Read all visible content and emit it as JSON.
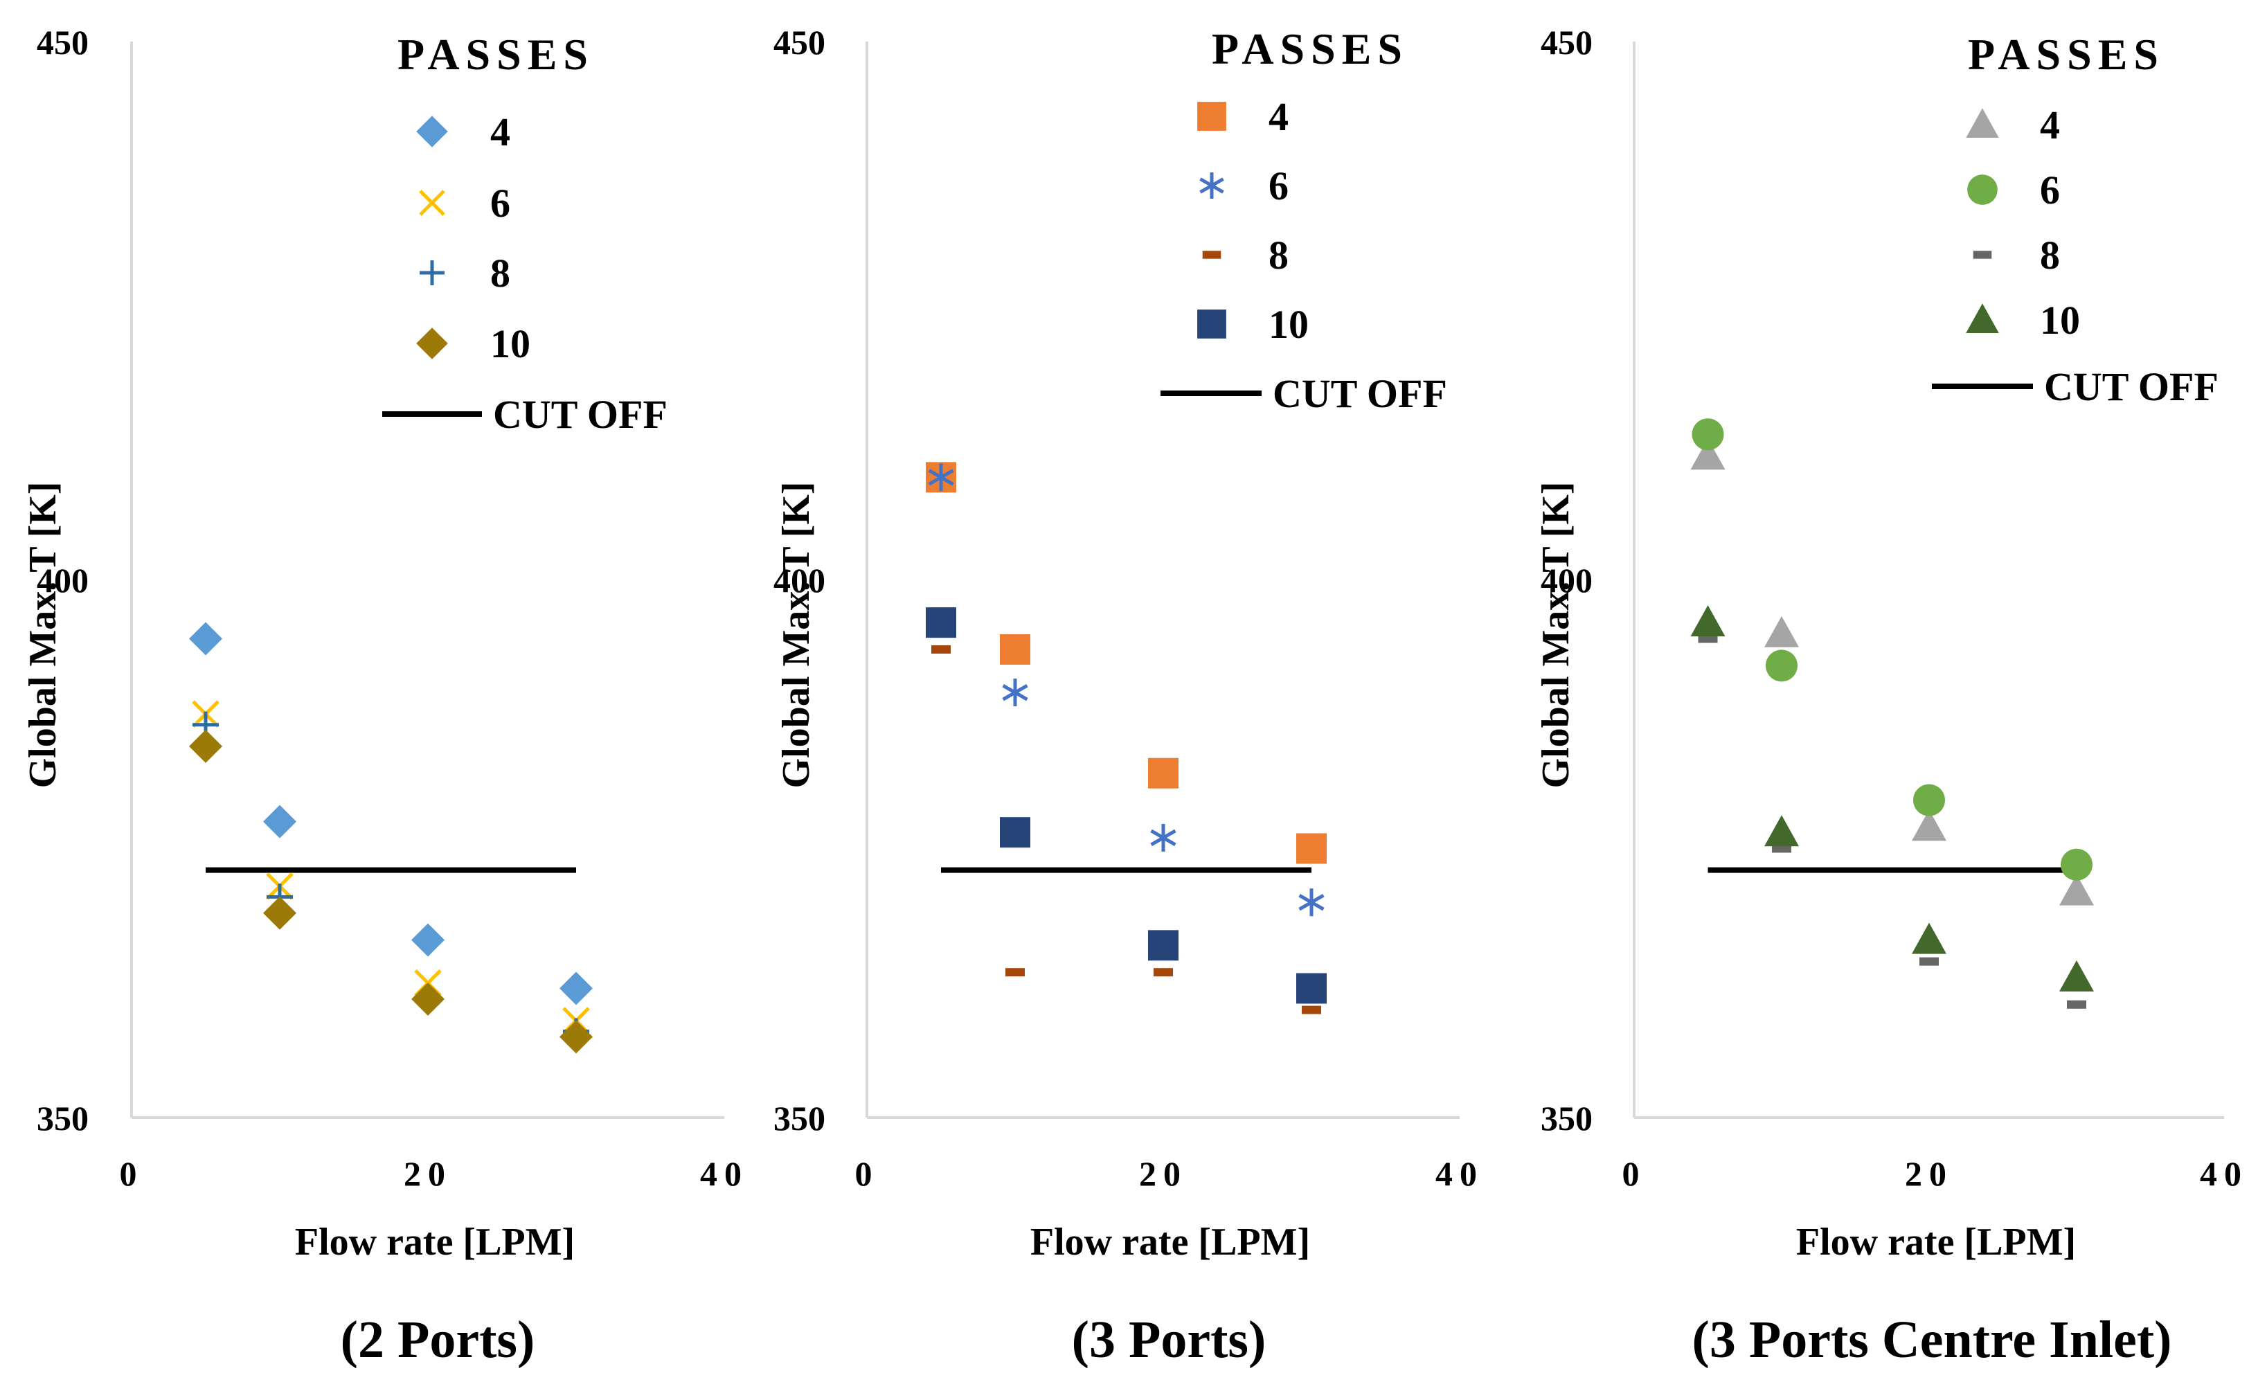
{
  "chart_data": [
    {
      "type": "scatter",
      "title": "(2 Ports)",
      "xlabel": "Flow rate [LPM]",
      "ylabel": "Global Max. T [K]",
      "xlim": [
        0,
        40
      ],
      "ylim": [
        350,
        450
      ],
      "xticks": [
        0,
        20,
        40
      ],
      "yticks": [
        350,
        400,
        450
      ],
      "xtick_labels": [
        "0",
        "20",
        "40"
      ],
      "ytick_labels": [
        "350",
        "400",
        "450"
      ],
      "grid": false,
      "legend_title": "PASSES",
      "legend_position": "top-right",
      "series": [
        {
          "name": "4",
          "marker": "diamond",
          "color": "#5b9bd5",
          "x": [
            5,
            10,
            20,
            30
          ],
          "y": [
            394.5,
            377.5,
            366.5,
            362
          ]
        },
        {
          "name": "6",
          "marker": "x",
          "color": "#ffc000",
          "x": [
            5,
            10,
            20,
            30
          ],
          "y": [
            387.5,
            371.5,
            362.5,
            359
          ]
        },
        {
          "name": "8",
          "marker": "plus",
          "color": "#2e6da4",
          "x": [
            5,
            10,
            20,
            30
          ],
          "y": [
            386.5,
            370.5,
            361,
            358
          ]
        },
        {
          "name": "10",
          "marker": "diamond",
          "color": "#9c7a08",
          "x": [
            5,
            10,
            20,
            30
          ],
          "y": [
            384.5,
            369,
            361,
            357.5
          ]
        }
      ],
      "cutoff": {
        "name": "CUT OFF",
        "color": "#000000",
        "x": [
          5,
          30
        ],
        "y": [
          373,
          373
        ]
      }
    },
    {
      "type": "scatter",
      "title": "(3 Ports)",
      "xlabel": "Flow rate [LPM]",
      "ylabel": "Global Max. T [K]",
      "xlim": [
        0,
        40
      ],
      "ylim": [
        350,
        450
      ],
      "xticks": [
        0,
        20,
        40
      ],
      "yticks": [
        350,
        400,
        450
      ],
      "xtick_labels": [
        "0",
        "20",
        "40"
      ],
      "ytick_labels": [
        "350",
        "400",
        "450"
      ],
      "grid": false,
      "legend_title": "PASSES",
      "legend_position": "top-right",
      "series": [
        {
          "name": "4",
          "marker": "square",
          "color": "#ed7d31",
          "x": [
            5,
            10,
            20,
            30
          ],
          "y": [
            409.5,
            393.5,
            382,
            375
          ]
        },
        {
          "name": "6",
          "marker": "asterisk",
          "color": "#4472c4",
          "x": [
            5,
            10,
            20,
            30
          ],
          "y": [
            409.5,
            389.5,
            376,
            370
          ]
        },
        {
          "name": "8",
          "marker": "dash",
          "color": "#a5460b",
          "x": [
            5,
            10,
            20,
            30
          ],
          "y": [
            393.5,
            363.5,
            363.5,
            360
          ]
        },
        {
          "name": "10",
          "marker": "square",
          "color": "#264478",
          "x": [
            5,
            10,
            20,
            30
          ],
          "y": [
            396,
            376.5,
            366,
            362
          ]
        }
      ],
      "cutoff": {
        "name": "CUT OFF",
        "color": "#000000",
        "x": [
          5,
          30
        ],
        "y": [
          373,
          373
        ]
      }
    },
    {
      "type": "scatter",
      "title": "(3 Ports Centre Inlet)",
      "xlabel": "Flow rate [LPM]",
      "ylabel": "Global Max. T [K]",
      "xlim": [
        0,
        40
      ],
      "ylim": [
        350,
        450
      ],
      "xticks": [
        0,
        20,
        40
      ],
      "yticks": [
        350,
        400,
        450
      ],
      "xtick_labels": [
        "0",
        "20",
        "40"
      ],
      "ytick_labels": [
        "350",
        "400",
        "450"
      ],
      "grid": false,
      "legend_title": "PASSES",
      "legend_position": "top-right",
      "series": [
        {
          "name": "4",
          "marker": "triangle",
          "color": "#a5a5a5",
          "x": [
            5,
            10,
            20,
            30
          ],
          "y": [
            411.5,
            395,
            377,
            371
          ]
        },
        {
          "name": "6",
          "marker": "circle",
          "color": "#70ad47",
          "x": [
            5,
            10,
            20,
            30
          ],
          "y": [
            413.5,
            392,
            379.5,
            373.5
          ]
        },
        {
          "name": "8",
          "marker": "dash",
          "color": "#666666",
          "x": [
            5,
            10,
            20,
            30
          ],
          "y": [
            394.5,
            375,
            364.5,
            360.5
          ]
        },
        {
          "name": "10",
          "marker": "triangle",
          "color": "#43682b",
          "x": [
            5,
            10,
            20,
            30
          ],
          "y": [
            396,
            376.5,
            366.5,
            363
          ]
        }
      ],
      "cutoff": {
        "name": "CUT OFF",
        "color": "#000000",
        "x": [
          5,
          30
        ],
        "y": [
          373,
          373
        ]
      }
    }
  ]
}
